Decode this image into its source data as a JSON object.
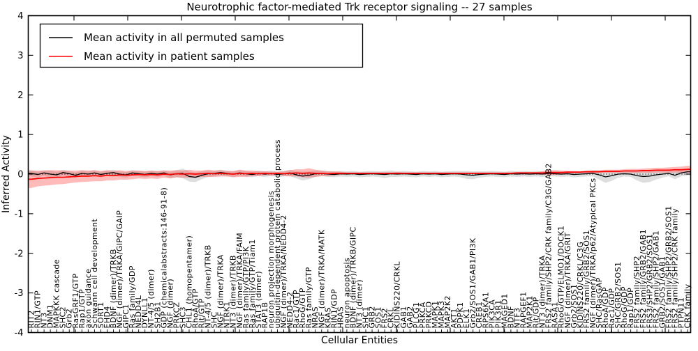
{
  "chart_data": {
    "type": "line",
    "title": "Neurotrophic factor-mediated Trk receptor signaling -- 27 samples",
    "xlabel": "Cellular Entities",
    "ylabel": "Inferred Activity",
    "ylim": [
      -4,
      4
    ],
    "yticks": [
      4,
      3,
      2,
      1,
      0,
      -1,
      -2,
      -3,
      -4
    ],
    "zero_reference_line": true,
    "legend_position": "upper left",
    "categories": [
      "RIT2",
      "RIN1/GTP",
      "NT3",
      "DNM1",
      "MAPKKK cascade",
      "SHC2",
      "Grb2",
      "RasGRF1/GTP",
      "Rap1/GTP",
      "axon guidance",
      "Schwann cell development",
      "SORT1",
      "EHD4",
      "BDNF (dimer)/TRKB",
      "NGF (dimer)/TRKA/GIPC/GAIP",
      "GIPC1",
      "Ras family/GDP",
      "NEDD4L",
      "DYNLL1",
      "NT-4/5 (dimer)",
      "SH2B1",
      "GDP (chemicalabstracts:146-91-8)",
      "NGF (dimer)",
      "PRKCZ",
      "SHC3",
      "CHL1 (homopentamer)",
      "RhoA/GTP",
      "Rit/GTP",
      "NT-4/5 (dimer)/TRKB",
      "SHC",
      "NGF (dimer)/TRKA",
      "NTRK1",
      "NT3 (dimer)/TRKB",
      "NGF (dimer)/TRKA/FAIM",
      "Ras family/GTP/PI3K",
      "Ras family/GTP/Tiam1",
      "STAT3 (dimer)",
      "RAP1B",
      "neuron projection morphogenesis",
      "ubiquitin-dependent protein catabolic process",
      "NGF (dimer)/TRKA/NEDD4-2",
      "NEDD4-2",
      "Rac1/GTP",
      "RhoG/GTP",
      "Ras family/GTP",
      "NRAS",
      "NGF (dimer)/TRKA/MATK",
      "KRAS",
      "RIN1/GDP",
      "HRAS",
      "neuron apoptosis",
      "BDNF (dimer)/TRKB/GIPC",
      "NT3 (dimer)",
      "SHC1",
      "GRB2",
      "SOS1",
      "FRS2",
      "CRKL",
      "KIDINS220/CRKL",
      "GAB1",
      "GAB2",
      "PLCG1",
      "PRKCA",
      "PRKCD",
      "MAPK1",
      "MAPK3",
      "MAP2K2",
      "AKT1",
      "PDPK1",
      "ELK1",
      "Grb2/SOS1/GAB1/PI3K",
      "CREB1",
      "RPS6KA1",
      "PIK3CA",
      "PIK3R1",
      "MAGED1",
      "BDNF",
      "NTF3",
      "RAPGEF1",
      "MAP2K1",
      "Rit/GDP",
      "NT3 (dimer)/TRKA",
      "FRS2 family/SHP2/CRK family/C3G/GAB2",
      "RASA1",
      "RhoG/GTP/ELMO1/DOCK1",
      "NGF (dimer)/TRKA/GRIT",
      "Grb2/SOS1",
      "KIDINS220/CRKL/C3G",
      "FRS2 family/GRB2/SOS1",
      "NGF (dimer)/TRKA/p62/Atypical PKCs",
      "SHC/RasGAP",
      "RhoA/GDP",
      "Rac1/GDP",
      "SHC/GRB2/SOS1",
      "RhoG/GDP",
      "Rap1/GDP",
      "FRS2 family/SHP2",
      "FRS2 family/GRB2/GAB1",
      "FRS3/SHP2/GRB2/SOS1",
      "FRS2 family/SHP2/GAB1",
      "GRB2/SOS1/GAB1",
      "FRS2 family/SHP2/GRB2/SOS1",
      "FRS2 family/SHP2/CRK family",
      "PTPN11",
      "CRK family"
    ],
    "series": [
      {
        "name": "Mean activity in all permuted samples",
        "color": "#000000",
        "band_color": "rgba(0,0,0,0.13)",
        "values": [
          0.02,
          -0.01,
          0.03,
          0,
          -0.02,
          0.04,
          0.01,
          -0.03,
          0.02,
          0,
          0.03,
          -0.01,
          0.02,
          0.04,
          0,
          -0.02,
          0.03,
          0.01,
          -0.01,
          0.02,
          0,
          0.03,
          -0.02,
          0.01,
          0.02,
          -0.06,
          -0.08,
          -0.03,
          0.01,
          0.02,
          0.04,
          0.02,
          0,
          0.03,
          0.01,
          -0.01,
          0.02,
          0,
          0.02,
          -0.01,
          0.01,
          0.03,
          -0.02,
          -0.05,
          -0.03,
          0.01,
          0.02,
          0,
          -0.01,
          0.01,
          0,
          0.01,
          -0.01,
          0,
          0.01,
          0,
          -0.01,
          0.01,
          0,
          0.01,
          0,
          -0.01,
          0.01,
          0,
          0.01,
          -0.01,
          0,
          0.01,
          0,
          -0.02,
          -0.03,
          -0.01,
          0,
          0.01,
          0,
          -0.01,
          0.01,
          0,
          0.01,
          0,
          0.01,
          0,
          0.02,
          0.01,
          0,
          0.01,
          -0.01,
          0,
          0.01,
          0.02,
          -0.02,
          -0.07,
          -0.04,
          0,
          0.01,
          0,
          -0.04,
          -0.06,
          -0.05,
          -0.02,
          0,
          0.02,
          -0.03,
          0.03,
          0.06
        ],
        "band_halfwidth": [
          0.08,
          0.07,
          0.07,
          0.09,
          0.08,
          0.07,
          0.07,
          0.07,
          0.07,
          0.07,
          0.07,
          0.07,
          0.07,
          0.07,
          0.07,
          0.07,
          0.07,
          0.07,
          0.07,
          0.07,
          0.07,
          0.07,
          0.08,
          0.09,
          0.12,
          0.13,
          0.12,
          0.1,
          0.08,
          0.07,
          0.07,
          0.07,
          0.07,
          0.07,
          0.07,
          0.07,
          0.07,
          0.07,
          0.07,
          0.07,
          0.07,
          0.08,
          0.09,
          0.11,
          0.1,
          0.08,
          0.07,
          0.07,
          0.07,
          0.07,
          0.07,
          0.07,
          0.07,
          0.07,
          0.07,
          0.07,
          0.09,
          0.08,
          0.07,
          0.07,
          0.07,
          0.07,
          0.07,
          0.07,
          0.07,
          0.07,
          0.07,
          0.07,
          0.08,
          0.1,
          0.1,
          0.08,
          0.07,
          0.07,
          0.07,
          0.07,
          0.07,
          0.07,
          0.07,
          0.07,
          0.07,
          0.07,
          0.07,
          0.07,
          0.07,
          0.07,
          0.07,
          0.07,
          0.07,
          0.08,
          0.12,
          0.15,
          0.13,
          0.09,
          0.07,
          0.07,
          0.12,
          0.16,
          0.15,
          0.12,
          0.09,
          0.07,
          0.1,
          0.09,
          0.09
        ]
      },
      {
        "name": "Mean activity in patient samples",
        "color": "#ff0000",
        "band_color": "rgba(255,45,45,0.33)",
        "values": [
          -0.13,
          -0.11,
          -0.1,
          -0.09,
          -0.08,
          -0.08,
          -0.07,
          -0.06,
          -0.05,
          -0.05,
          -0.04,
          -0.05,
          -0.03,
          -0.04,
          -0.02,
          -0.03,
          -0.02,
          -0.01,
          -0.02,
          -0.01,
          -0.02,
          0,
          -0.01,
          0.01,
          0,
          0.01,
          0,
          0.01,
          0.02,
          0.01,
          0.02,
          0.01,
          0,
          0.02,
          0.01,
          0.02,
          0.01,
          0.02,
          0.01,
          0.02,
          0.01,
          0.02,
          0.03,
          0.02,
          0.03,
          0.02,
          0.02,
          0.01,
          0.02,
          0.02,
          0.02,
          0.02,
          0.02,
          0.02,
          0.02,
          0.02,
          0.02,
          0.02,
          0.02,
          0.02,
          0.02,
          0.02,
          0.02,
          0.02,
          0.02,
          0.02,
          0.02,
          0.02,
          0.02,
          0.02,
          0.02,
          0.02,
          0.02,
          0.02,
          0.02,
          0.02,
          0.02,
          0.03,
          0.03,
          0.03,
          0.03,
          0.03,
          0.04,
          0.04,
          0.04,
          0.05,
          0.05,
          0.05,
          0.06,
          0.06,
          0.06,
          0.07,
          0.07,
          0.07,
          0.08,
          0.08,
          0.08,
          0.09,
          0.09,
          0.1,
          0.1,
          0.1,
          0.11,
          0.11,
          0.12
        ],
        "band_halfwidth": [
          0.22,
          0.2,
          0.19,
          0.19,
          0.18,
          0.17,
          0.16,
          0.15,
          0.15,
          0.14,
          0.14,
          0.13,
          0.13,
          0.12,
          0.12,
          0.11,
          0.11,
          0.1,
          0.1,
          0.1,
          0.1,
          0.09,
          0.1,
          0.09,
          0.09,
          0.1,
          0.09,
          0.08,
          0.09,
          0.08,
          0.08,
          0.07,
          0.08,
          0.09,
          0.08,
          0.07,
          0.06,
          0.05,
          0.05,
          0.04,
          0.06,
          0.08,
          0.09,
          0.1,
          0.12,
          0.09,
          0.07,
          0.06,
          0.05,
          0.04,
          0.02,
          0.02,
          0.02,
          0.02,
          0.02,
          0.02,
          0.02,
          0.02,
          0.03,
          0.02,
          0.02,
          0.02,
          0.02,
          0.02,
          0.02,
          0.02,
          0.02,
          0.02,
          0.02,
          0.02,
          0.02,
          0.02,
          0.02,
          0.02,
          0.02,
          0.02,
          0.02,
          0.02,
          0.02,
          0.02,
          0.02,
          0.04,
          0.06,
          0.06,
          0.05,
          0.03,
          0.03,
          0.02,
          0.03,
          0.03,
          0.03,
          0.04,
          0.04,
          0.04,
          0.04,
          0.05,
          0.05,
          0.05,
          0.06,
          0.06,
          0.06,
          0.07,
          0.07,
          0.08,
          0.09
        ]
      }
    ]
  }
}
